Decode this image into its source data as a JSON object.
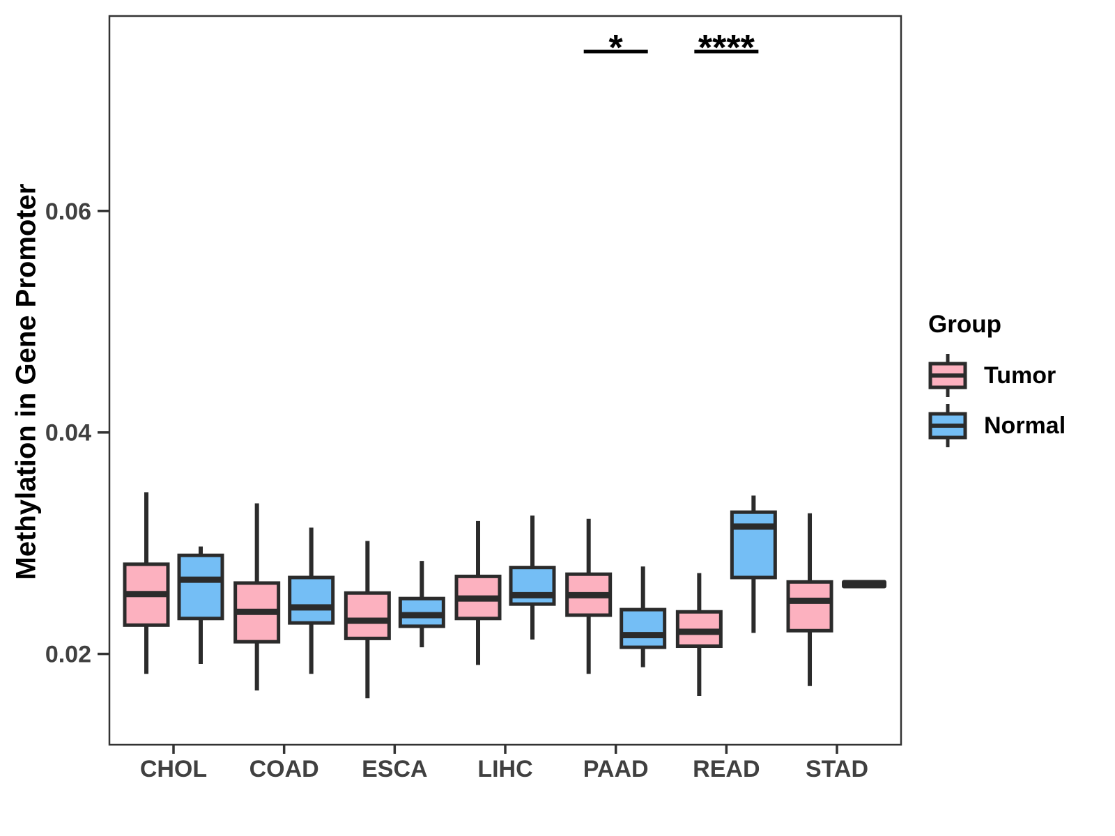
{
  "figure": {
    "background": "#ffffff",
    "panel_border_color": "#333333",
    "axis": {
      "tick_color": "#333333",
      "label_color": "#404040",
      "y_tick_labels": [
        "0.02",
        "0.04",
        "0.06"
      ]
    },
    "legend": {
      "title": "Group",
      "items": [
        {
          "label": "Tumor",
          "color": "#FCB1BF"
        },
        {
          "label": "Normal",
          "color": "#74BEF5"
        }
      ]
    },
    "colors": {
      "box_stroke": "#2b2b2b",
      "tumor_fill": "#FCB1BF",
      "normal_fill": "#74BEF5",
      "significance": "#000000"
    }
  },
  "chart_data": {
    "type": "boxplot",
    "title": "",
    "xlabel": "",
    "ylabel": "Methylation in Gene Promoter",
    "categories": [
      "CHOL",
      "COAD",
      "ESCA",
      "LIHC",
      "PAAD",
      "READ",
      "STAD"
    ],
    "y_ticks": [
      0.02,
      0.04,
      0.06
    ],
    "ylim": [
      0.0118,
      0.0776
    ],
    "grid": false,
    "legend_position": "right",
    "series": [
      {
        "name": "Tumor",
        "color": "#FCB1BF",
        "boxes": [
          {
            "category": "CHOL",
            "min": 0.0182,
            "q1": 0.0226,
            "median": 0.0254,
            "q3": 0.0281,
            "max": 0.0346
          },
          {
            "category": "COAD",
            "min": 0.0167,
            "q1": 0.0211,
            "median": 0.0238,
            "q3": 0.0264,
            "max": 0.0336
          },
          {
            "category": "ESCA",
            "min": 0.016,
            "q1": 0.0214,
            "median": 0.023,
            "q3": 0.0255,
            "max": 0.0302
          },
          {
            "category": "LIHC",
            "min": 0.019,
            "q1": 0.0232,
            "median": 0.025,
            "q3": 0.027,
            "max": 0.032
          },
          {
            "category": "PAAD",
            "min": 0.0182,
            "q1": 0.0235,
            "median": 0.0253,
            "q3": 0.0272,
            "max": 0.0322
          },
          {
            "category": "READ",
            "min": 0.0162,
            "q1": 0.0207,
            "median": 0.022,
            "q3": 0.0238,
            "max": 0.0273
          },
          {
            "category": "STAD",
            "min": 0.0171,
            "q1": 0.0221,
            "median": 0.0248,
            "q3": 0.0265,
            "max": 0.0327
          }
        ]
      },
      {
        "name": "Normal",
        "color": "#74BEF5",
        "boxes": [
          {
            "category": "CHOL",
            "min": 0.0191,
            "q1": 0.0232,
            "median": 0.0267,
            "q3": 0.0289,
            "max": 0.0297
          },
          {
            "category": "COAD",
            "min": 0.0182,
            "q1": 0.0228,
            "median": 0.0242,
            "q3": 0.0269,
            "max": 0.0314
          },
          {
            "category": "ESCA",
            "min": 0.0206,
            "q1": 0.0225,
            "median": 0.0235,
            "q3": 0.025,
            "max": 0.0284
          },
          {
            "category": "LIHC",
            "min": 0.0213,
            "q1": 0.0245,
            "median": 0.0253,
            "q3": 0.0278,
            "max": 0.0325
          },
          {
            "category": "PAAD",
            "min": 0.0188,
            "q1": 0.0206,
            "median": 0.0217,
            "q3": 0.024,
            "max": 0.0279
          },
          {
            "category": "READ",
            "min": 0.0219,
            "q1": 0.0269,
            "median": 0.0315,
            "q3": 0.0328,
            "max": 0.0343
          },
          {
            "category": "STAD",
            "min": 0.0263,
            "q1": 0.0263,
            "median": 0.0263,
            "q3": 0.0263,
            "max": 0.0263
          }
        ]
      }
    ],
    "significance": [
      {
        "category": "PAAD",
        "label": "*"
      },
      {
        "category": "READ",
        "label": "****"
      }
    ]
  }
}
